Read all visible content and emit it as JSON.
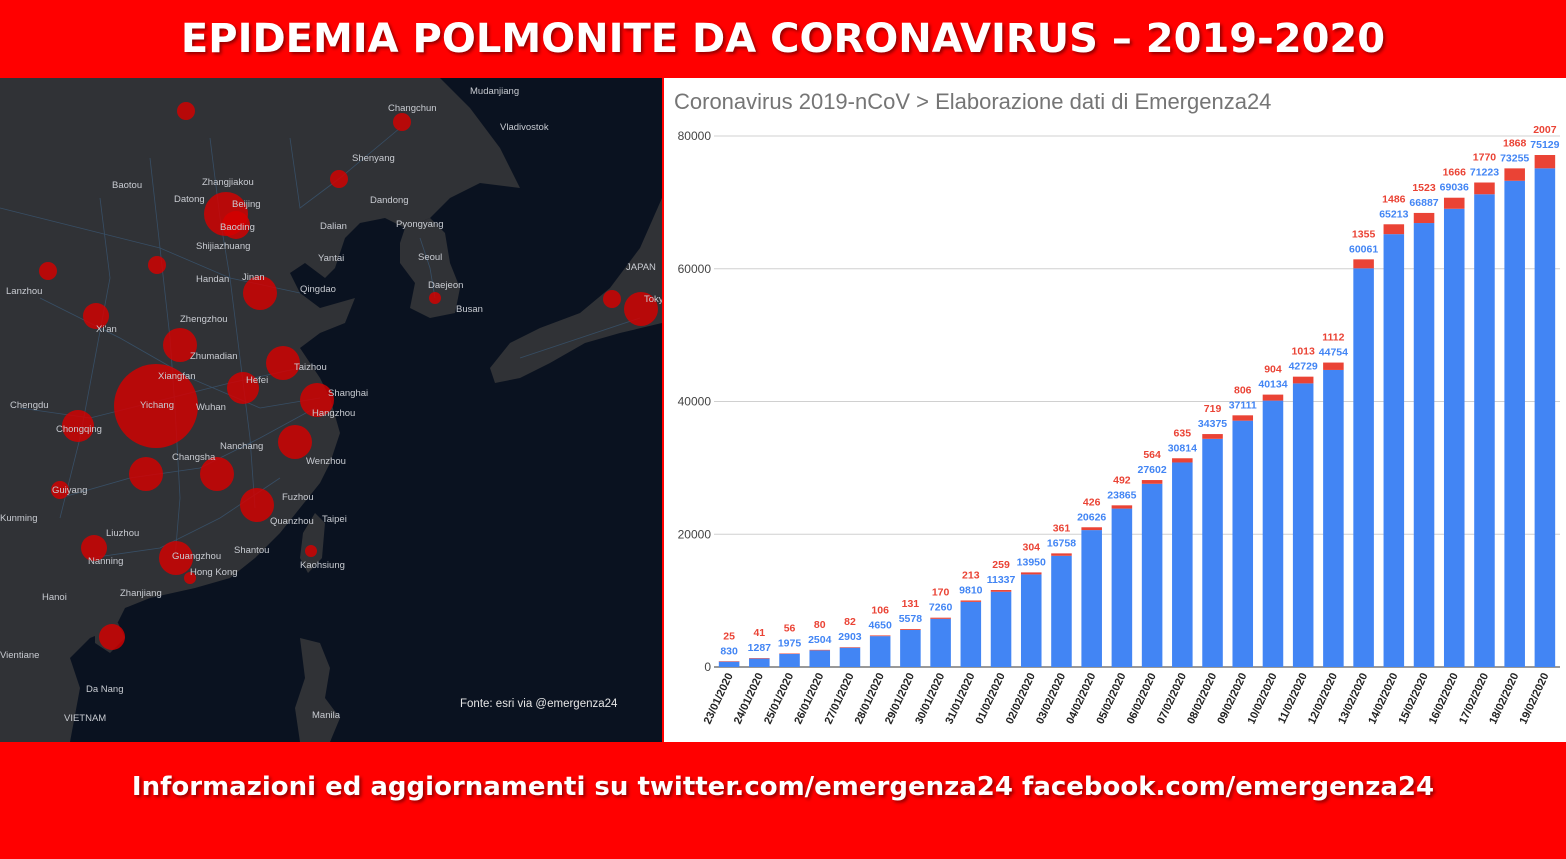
{
  "header": {
    "title": "EPIDEMIA POLMONITE DA CORONAVIRUS – 2019-2020"
  },
  "map": {
    "credit": "Fonte: esri via @emergenza24",
    "labels": [
      "Changchun",
      "Vladivostok",
      "Mudanjiang",
      "Shenyang",
      "Baotou",
      "Zhangjiakou",
      "Datong",
      "Beijing",
      "Baoding",
      "Dandong",
      "Dalian",
      "Pyongyang",
      "Shijiazhuang",
      "Yantai",
      "Seoul",
      "Handan",
      "Jinan",
      "Qingdao",
      "Lanzhou",
      "Daejeon",
      "Busan",
      "JAPAN",
      "Tokyo",
      "Zhengzhou",
      "Xi'an",
      "Zhumadian",
      "Taizhou",
      "Xiangfan",
      "Hefei",
      "Shanghai",
      "Chengdu",
      "Yichang",
      "Wuhan",
      "Hangzhou",
      "Chongqing",
      "Nanchang",
      "Changsha",
      "Wenzhou",
      "Guiyang",
      "Fuzhou",
      "Kunming",
      "Quanzhou",
      "Taipei",
      "Liuzhou",
      "Nanning",
      "Shantou",
      "Guangzhou",
      "Hong Kong",
      "Zhanjiang",
      "Kaohsiung",
      "Hanoi",
      "Da Nang",
      "VIETNAM",
      "Manila",
      "Vientiane"
    ],
    "bubble_color": "#d50000"
  },
  "footer": {
    "text": "Informazioni ed aggiornamenti su twitter.com/emergenza24  facebook.com/emergenza24"
  },
  "chart_data": {
    "type": "bar",
    "title": "Coronavirus 2019-nCoV > Elaborazione dati di Emergenza24",
    "stacked": true,
    "ylim": [
      0,
      80000
    ],
    "yticks": [
      0,
      20000,
      40000,
      60000,
      80000
    ],
    "grid": true,
    "categories": [
      "23/01/2020",
      "24/01/2020",
      "25/01/2020",
      "26/01/2020",
      "27/01/2020",
      "28/01/2020",
      "29/01/2020",
      "30/01/2020",
      "31/01/2020",
      "01/02/2020",
      "02/02/2020",
      "03/02/2020",
      "04/02/2020",
      "05/02/2020",
      "06/02/2020",
      "07/02/2020",
      "08/02/2020",
      "09/02/2020",
      "10/02/2020",
      "11/02/2020",
      "12/02/2020",
      "13/02/2020",
      "14/02/2020",
      "15/02/2020",
      "16/02/2020",
      "17/02/2020",
      "18/02/2020",
      "19/02/2020"
    ],
    "series": [
      {
        "color": "#4285f4",
        "values": [
          830,
          1287,
          1975,
          2504,
          2903,
          4650,
          5578,
          7260,
          9810,
          11337,
          13950,
          16758,
          20626,
          23865,
          27602,
          30814,
          34375,
          37111,
          40134,
          42729,
          44754,
          60061,
          65213,
          66887,
          69036,
          71223,
          73255,
          75129
        ]
      },
      {
        "color": "#ea4335",
        "values": [
          25,
          41,
          56,
          80,
          82,
          106,
          131,
          170,
          213,
          259,
          304,
          361,
          426,
          492,
          564,
          635,
          719,
          806,
          904,
          1013,
          1112,
          1355,
          1486,
          1523,
          1666,
          1770,
          1868,
          2007
        ]
      }
    ]
  }
}
